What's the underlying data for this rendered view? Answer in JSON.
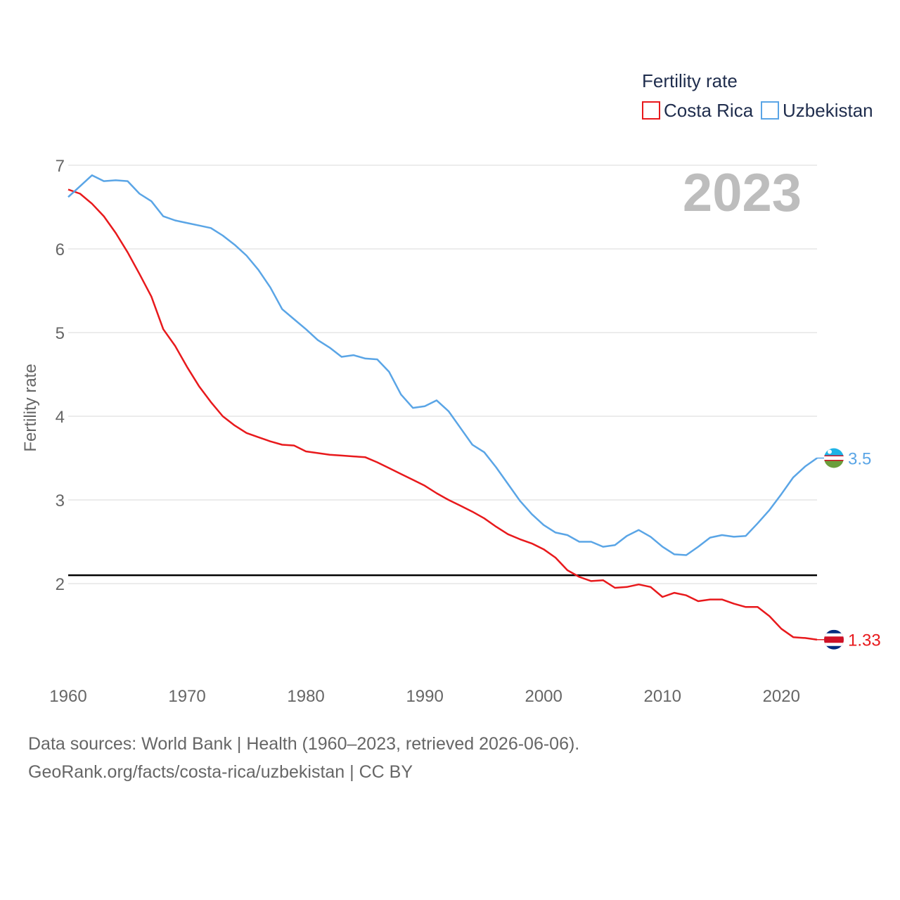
{
  "chart_data": {
    "type": "line",
    "title": "Fertility rate",
    "ylabel": "Fertility rate",
    "xlabel": "",
    "xlim": [
      1960,
      2023
    ],
    "ylim": [
      1.0,
      7.0
    ],
    "x_ticks": [
      "1960",
      "1970",
      "1980",
      "1990",
      "2000",
      "2010",
      "2020"
    ],
    "y_ticks": [
      "2",
      "3",
      "4",
      "5",
      "6",
      "7"
    ],
    "grid": true,
    "legend_position": "top-right",
    "highlight_year": "2023",
    "reference_line": {
      "y": 2.1
    },
    "x": [
      1960,
      1961,
      1962,
      1963,
      1964,
      1965,
      1966,
      1967,
      1968,
      1969,
      1970,
      1971,
      1972,
      1973,
      1974,
      1975,
      1976,
      1977,
      1978,
      1979,
      1980,
      1981,
      1982,
      1983,
      1984,
      1985,
      1986,
      1987,
      1988,
      1989,
      1990,
      1991,
      1992,
      1993,
      1994,
      1995,
      1996,
      1997,
      1998,
      1999,
      2000,
      2001,
      2002,
      2003,
      2004,
      2005,
      2006,
      2007,
      2008,
      2009,
      2010,
      2011,
      2012,
      2013,
      2014,
      2015,
      2016,
      2017,
      2018,
      2019,
      2020,
      2021,
      2022,
      2023
    ],
    "series": [
      {
        "name": "Costa Rica",
        "color": "#e8191c",
        "end_label": "1.33",
        "flag": "costa-rica-flag-icon",
        "values": [
          6.71,
          6.66,
          6.54,
          6.39,
          6.19,
          5.96,
          5.7,
          5.43,
          5.04,
          4.84,
          4.59,
          4.36,
          4.17,
          4.0,
          3.89,
          3.8,
          3.75,
          3.7,
          3.66,
          3.65,
          3.58,
          3.56,
          3.54,
          3.53,
          3.52,
          3.51,
          3.45,
          3.38,
          3.31,
          3.24,
          3.17,
          3.08,
          3.0,
          2.93,
          2.86,
          2.78,
          2.68,
          2.59,
          2.53,
          2.48,
          2.41,
          2.31,
          2.16,
          2.08,
          2.03,
          2.04,
          1.95,
          1.96,
          1.99,
          1.96,
          1.84,
          1.89,
          1.86,
          1.79,
          1.81,
          1.81,
          1.76,
          1.72,
          1.72,
          1.61,
          1.46,
          1.36,
          1.35,
          1.33
        ]
      },
      {
        "name": "Uzbekistan",
        "color": "#5aa5e6",
        "end_label": "3.5",
        "flag": "uzbekistan-flag-icon",
        "values": [
          6.62,
          6.75,
          6.88,
          6.81,
          6.82,
          6.81,
          6.66,
          6.57,
          6.39,
          6.34,
          6.31,
          6.28,
          6.25,
          6.16,
          6.05,
          5.92,
          5.75,
          5.54,
          5.28,
          5.16,
          5.04,
          4.91,
          4.82,
          4.71,
          4.73,
          4.69,
          4.68,
          4.53,
          4.26,
          4.1,
          4.12,
          4.19,
          4.06,
          3.86,
          3.66,
          3.57,
          3.39,
          3.19,
          2.99,
          2.83,
          2.7,
          2.61,
          2.58,
          2.5,
          2.5,
          2.44,
          2.46,
          2.57,
          2.64,
          2.56,
          2.44,
          2.35,
          2.34,
          2.44,
          2.55,
          2.58,
          2.56,
          2.57,
          2.72,
          2.88,
          3.07,
          3.27,
          3.4,
          3.5
        ]
      }
    ]
  },
  "footer": {
    "sources": "Data sources: World Bank | Health (1960–2023, retrieved 2026-06-06).",
    "credit": "GeoRank.org/facts/costa-rica/uzbekistan | CC BY"
  }
}
